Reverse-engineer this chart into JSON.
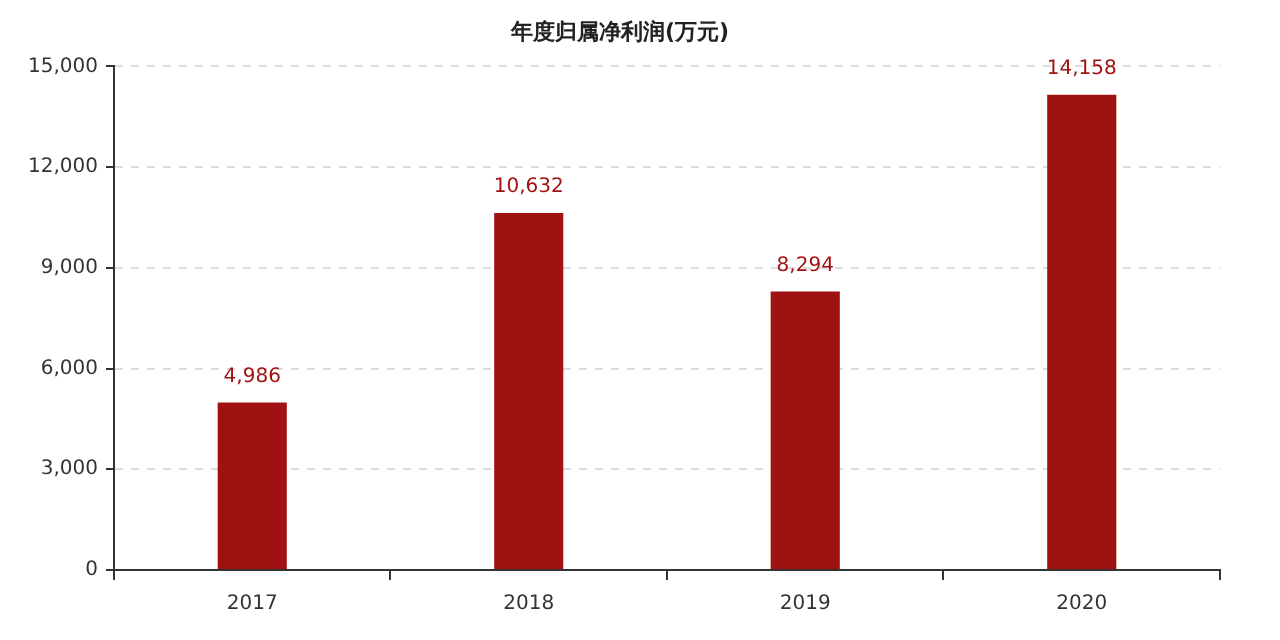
{
  "chart_data": {
    "type": "bar",
    "title": "年度归属净利润(万元)",
    "categories": [
      "2017",
      "2018",
      "2019",
      "2020"
    ],
    "values": [
      4986,
      10632,
      8294,
      14158
    ],
    "value_labels": [
      "4,986",
      "10,632",
      "8,294",
      "14,158"
    ],
    "color": "#a01212",
    "ylim": [
      0,
      15000
    ],
    "yticks": [
      {
        "value": 0,
        "label": "0"
      },
      {
        "value": 3000,
        "label": "3,000"
      },
      {
        "value": 6000,
        "label": "6,000"
      },
      {
        "value": 9000,
        "label": "9,000"
      },
      {
        "value": 12000,
        "label": "12,000"
      },
      {
        "value": 15000,
        "label": "15,000"
      }
    ],
    "grid": "y",
    "legend": false
  }
}
